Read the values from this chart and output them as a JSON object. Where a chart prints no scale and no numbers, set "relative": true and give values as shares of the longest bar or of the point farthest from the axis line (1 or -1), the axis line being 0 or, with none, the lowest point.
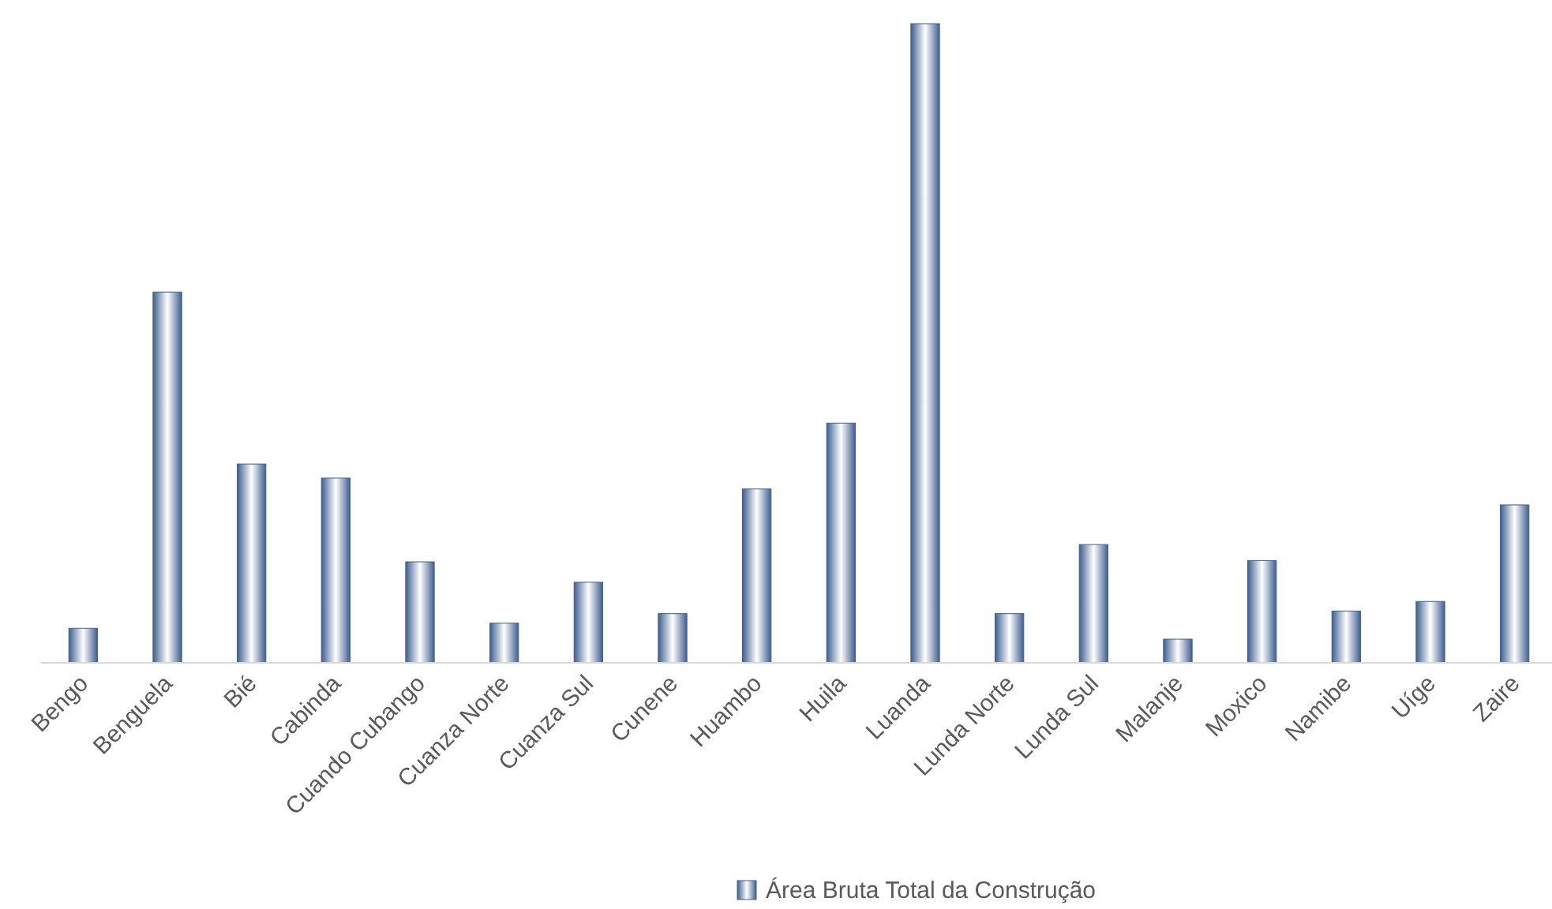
{
  "chart_data": {
    "type": "bar",
    "relative": true,
    "categories": [
      "Bengo",
      "Benguela",
      "Bié",
      "Cabinda",
      "Cuando Cubango",
      "Cuanza Norte",
      "Cuanza Sul",
      "Cunene",
      "Huambo",
      "Huila",
      "Luanda",
      "Lunda Norte",
      "Lunda Sul",
      "Malanje",
      "Moxico",
      "Namibe",
      "Uíge",
      "Zaire"
    ],
    "series": [
      {
        "name": "Área Bruta Total da Construção",
        "color": "#3f5f8f",
        "values": [
          0.054,
          0.58,
          0.311,
          0.289,
          0.158,
          0.062,
          0.126,
          0.077,
          0.272,
          0.375,
          1,
          0.077,
          0.185,
          0.037,
          0.16,
          0.081,
          0.096,
          0.247
        ]
      }
    ],
    "legend": "bottom"
  }
}
